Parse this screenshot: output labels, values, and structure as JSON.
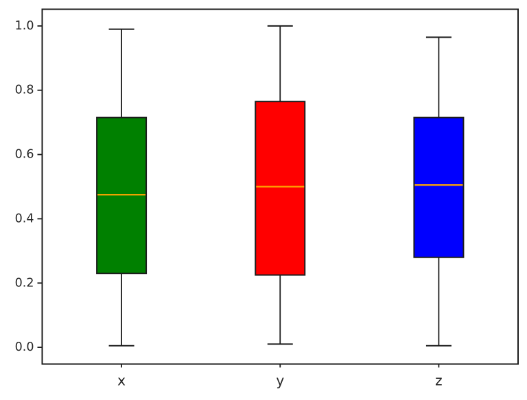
{
  "figure": {
    "background": "#ffffff",
    "plot_background": "#ffffff",
    "spine_color": "#1c1c1c",
    "tick_color": "#1c1c1c",
    "label_color": "#262626"
  },
  "chart_data": {
    "type": "boxplot",
    "title": "",
    "xlabel": "",
    "ylabel": "",
    "categories": [
      "x",
      "y",
      "z"
    ],
    "ytick_labels": [
      "0.0",
      "0.2",
      "0.4",
      "0.6",
      "0.8",
      "1.0"
    ],
    "ytick_values": [
      0.0,
      0.2,
      0.4,
      0.6,
      0.8,
      1.0
    ],
    "ylim": [
      -0.052,
      1.052
    ],
    "grid": false,
    "legend": false,
    "median_color": "#ffa500",
    "series": [
      {
        "name": "x",
        "box_color": "#008000",
        "whisker_low": 0.005,
        "q1": 0.23,
        "median": 0.475,
        "q3": 0.715,
        "whisker_high": 0.99
      },
      {
        "name": "y",
        "box_color": "#ff0000",
        "whisker_low": 0.01,
        "q1": 0.225,
        "median": 0.5,
        "q3": 0.765,
        "whisker_high": 1.0
      },
      {
        "name": "z",
        "box_color": "#0000ff",
        "whisker_low": 0.005,
        "q1": 0.28,
        "median": 0.505,
        "q3": 0.715,
        "whisker_high": 0.965
      }
    ]
  }
}
